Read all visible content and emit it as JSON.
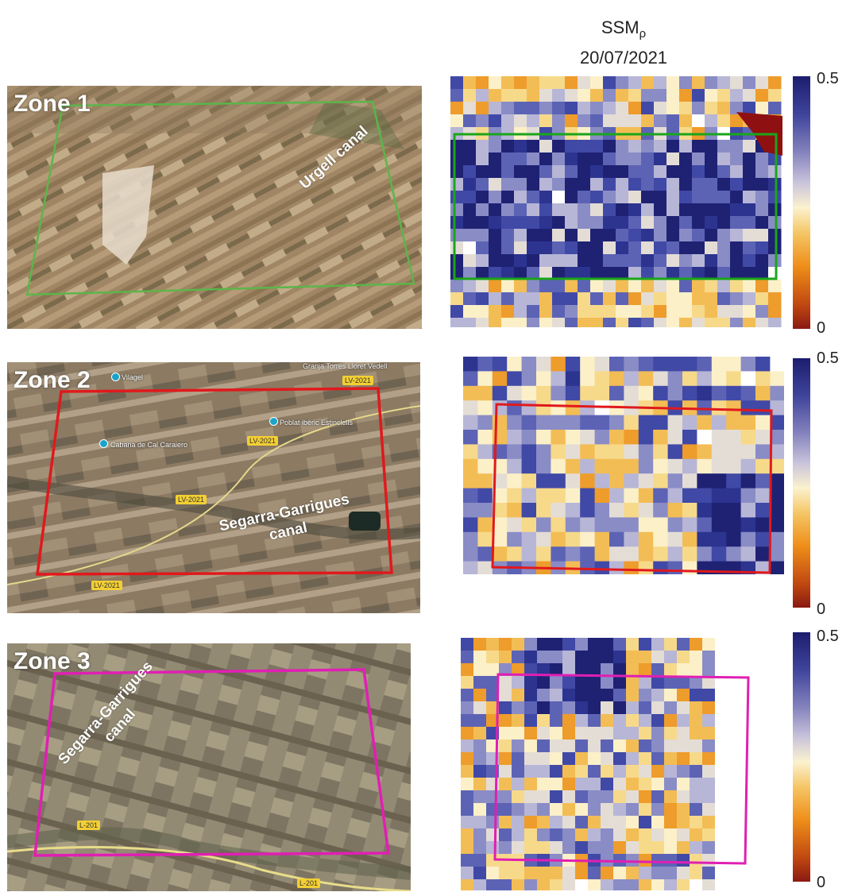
{
  "header": {
    "variable": "SSM",
    "subscript": "ρ",
    "date": "20/07/2021"
  },
  "zones": [
    {
      "label": "Zone 1",
      "canal_label": "Urgell canal",
      "outline_color": "#5cb54a",
      "roads": [],
      "pois": []
    },
    {
      "label": "Zone 2",
      "canal_label_line1": "Segarra-Garrigues",
      "canal_label_line2": "canal",
      "outline_color": "#e0191c",
      "roads": [
        "LV-2021",
        "LV-2021",
        "LV-2021",
        "LV-2021"
      ],
      "pois": [
        "Vilagel",
        "Cabana de Cal Caraiero",
        "Poblat ibèric Estinclells",
        "Granja Torres Lloret Vedell"
      ]
    },
    {
      "label": "Zone 3",
      "canal_label_line1": "Segarra-Garrigues",
      "canal_label_line2": "canal",
      "outline_color": "#e01fb3",
      "roads": [
        "L-201",
        "L-201"
      ],
      "pois": []
    }
  ],
  "colorbar": {
    "max_label": "0.5",
    "min_label": "0",
    "range": [
      0,
      0.5
    ]
  }
}
